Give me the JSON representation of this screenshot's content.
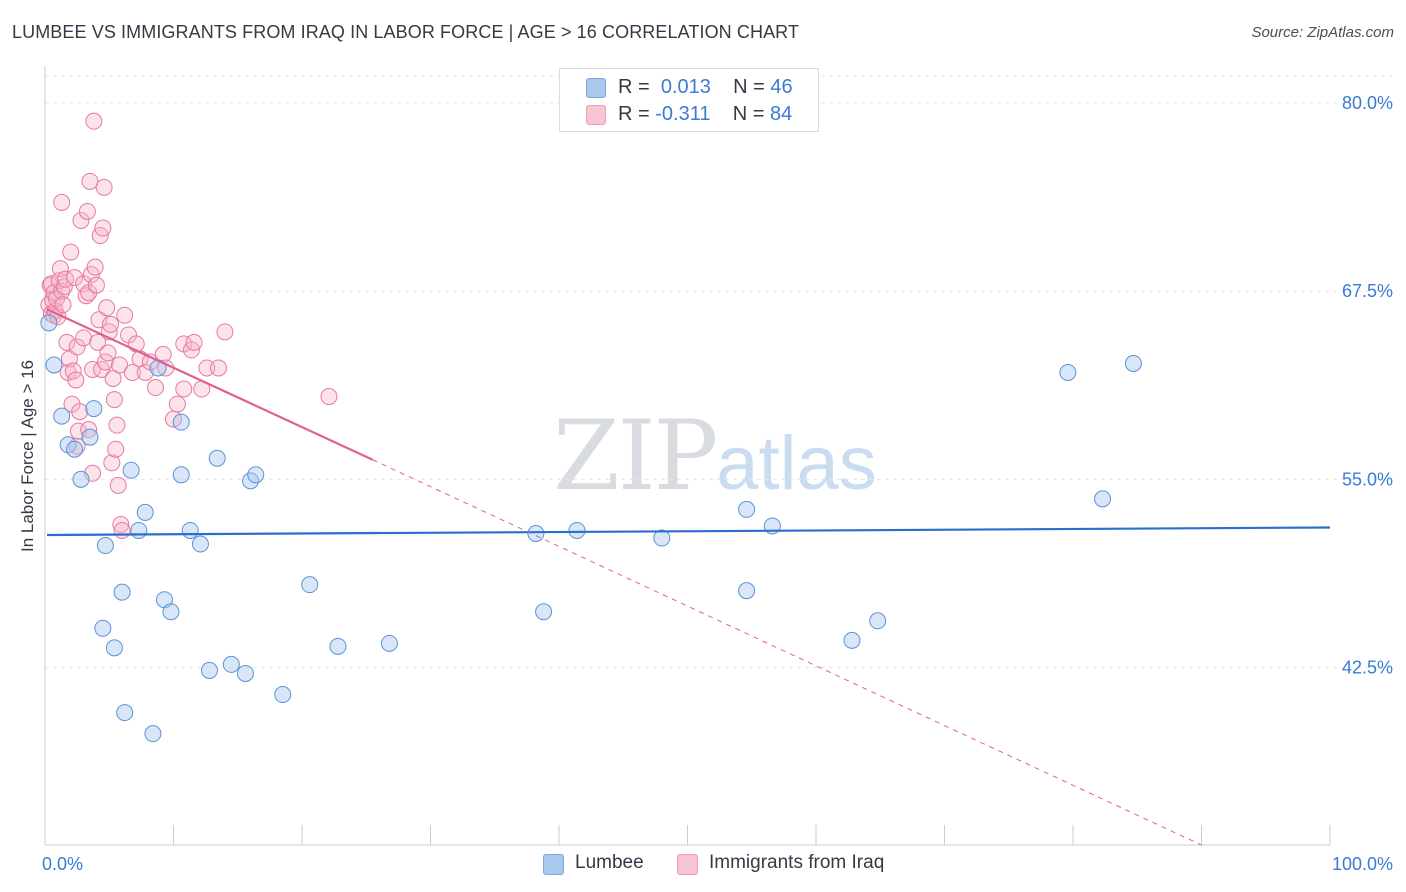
{
  "header": {
    "title": "LUMBEE VS IMMIGRANTS FROM IRAQ IN LABOR FORCE | AGE > 16 CORRELATION CHART",
    "source": "Source: ZipAtlas.com"
  },
  "watermark": {
    "zip": "ZIP",
    "atlas": "atlas"
  },
  "legend": {
    "rows": [
      {
        "r_label": "R =",
        "r_value": "0.013",
        "n_label": "N =",
        "n_value": "46",
        "color": "#a8c8ee"
      },
      {
        "r_label": "R =",
        "r_value": "-0.311",
        "n_label": "N =",
        "n_value": "84",
        "color": "#f7b6c8"
      }
    ]
  },
  "bottom_legend": {
    "items": [
      {
        "label": "Lumbee",
        "color": "#a8c8ee"
      },
      {
        "label": "Immigrants from Iraq",
        "color": "#f7b6c8"
      }
    ]
  },
  "colors": {
    "lumbee_fill": "rgba(168,200,238,0.45)",
    "lumbee_stroke": "#5b93d8",
    "lumbee_line": "#2a6fce",
    "iraq_fill": "rgba(247,182,200,0.40)",
    "iraq_stroke": "#e77aa0",
    "iraq_line": "#e0608e",
    "grid": "#e4e6ea",
    "tick_label": "#3a7bd5"
  },
  "chart_data": {
    "type": "scatter",
    "title": "LUMBEE VS IMMIGRANTS FROM IRAQ IN LABOR FORCE | AGE > 16 CORRELATION CHART",
    "xlabel": "",
    "ylabel": "In Labor Force | Age > 16",
    "xlim": [
      0,
      100
    ],
    "ylim": [
      30.7,
      82.2
    ],
    "x_tick_labels": [
      "0.0%",
      "100.0%"
    ],
    "y_ticks": [
      42.5,
      55.0,
      67.5,
      80.0
    ],
    "y_tick_labels": [
      "42.5%",
      "55.0%",
      "67.5%",
      "80.0%"
    ],
    "grid": true,
    "legend_position": "top-center",
    "series": [
      {
        "name": "Lumbee",
        "r": 0.013,
        "n": 46,
        "trend": {
          "x": [
            0,
            100
          ],
          "y": [
            51.3,
            51.8
          ],
          "style": "solid"
        },
        "points": [
          [
            0.3,
            65.4
          ],
          [
            0.7,
            62.6
          ],
          [
            1.3,
            59.2
          ],
          [
            1.8,
            57.3
          ],
          [
            2.3,
            57.0
          ],
          [
            2.8,
            55.0
          ],
          [
            3.5,
            57.8
          ],
          [
            3.8,
            59.7
          ],
          [
            4.5,
            45.1
          ],
          [
            4.7,
            50.6
          ],
          [
            5.4,
            43.8
          ],
          [
            6.0,
            47.5
          ],
          [
            6.2,
            39.5
          ],
          [
            6.7,
            55.6
          ],
          [
            7.3,
            51.6
          ],
          [
            7.8,
            52.8
          ],
          [
            8.4,
            38.1
          ],
          [
            8.8,
            62.4
          ],
          [
            9.3,
            47.0
          ],
          [
            9.8,
            46.2
          ],
          [
            10.6,
            58.8
          ],
          [
            10.6,
            55.3
          ],
          [
            11.3,
            51.6
          ],
          [
            12.1,
            50.7
          ],
          [
            12.8,
            42.3
          ],
          [
            13.4,
            56.4
          ],
          [
            14.5,
            42.7
          ],
          [
            15.6,
            42.1
          ],
          [
            16.0,
            54.9
          ],
          [
            16.4,
            55.3
          ],
          [
            18.5,
            40.7
          ],
          [
            20.6,
            48.0
          ],
          [
            22.8,
            43.9
          ],
          [
            26.8,
            44.1
          ],
          [
            38.2,
            51.4
          ],
          [
            38.8,
            46.2
          ],
          [
            41.4,
            51.6
          ],
          [
            48.0,
            51.1
          ],
          [
            54.6,
            53.0
          ],
          [
            54.6,
            47.6
          ],
          [
            56.6,
            51.9
          ],
          [
            62.8,
            44.3
          ],
          [
            64.8,
            45.6
          ],
          [
            79.6,
            62.1
          ],
          [
            82.3,
            53.7
          ],
          [
            84.7,
            62.7
          ]
        ]
      },
      {
        "name": "Immigrants from Iraq",
        "r": -0.311,
        "n": 84,
        "trend_solid": {
          "x": [
            0,
            25.5
          ],
          "y": [
            66.3,
            56.3
          ]
        },
        "trend_dashed": {
          "x": [
            25.5,
            90
          ],
          "y": [
            56.3,
            30.7
          ]
        },
        "points": [
          [
            0.3,
            66.6
          ],
          [
            0.4,
            67.9
          ],
          [
            0.5,
            66.0
          ],
          [
            0.5,
            68.0
          ],
          [
            0.6,
            66.9
          ],
          [
            0.7,
            65.9
          ],
          [
            0.7,
            67.4
          ],
          [
            0.8,
            66.2
          ],
          [
            0.9,
            67.0
          ],
          [
            1.0,
            65.8
          ],
          [
            1.1,
            68.2
          ],
          [
            1.2,
            69.0
          ],
          [
            1.3,
            67.5
          ],
          [
            1.3,
            73.4
          ],
          [
            1.4,
            66.6
          ],
          [
            1.5,
            67.8
          ],
          [
            1.6,
            68.3
          ],
          [
            1.7,
            64.1
          ],
          [
            1.8,
            62.1
          ],
          [
            1.9,
            63.0
          ],
          [
            2.0,
            70.1
          ],
          [
            2.1,
            60.0
          ],
          [
            2.2,
            62.2
          ],
          [
            2.3,
            68.4
          ],
          [
            2.4,
            61.6
          ],
          [
            2.5,
            63.8
          ],
          [
            2.5,
            57.2
          ],
          [
            2.6,
            58.2
          ],
          [
            2.7,
            59.5
          ],
          [
            2.8,
            72.2
          ],
          [
            3.0,
            64.4
          ],
          [
            3.0,
            68.0
          ],
          [
            3.2,
            67.2
          ],
          [
            3.3,
            72.8
          ],
          [
            3.4,
            67.4
          ],
          [
            3.4,
            58.3
          ],
          [
            3.5,
            74.8
          ],
          [
            3.6,
            68.6
          ],
          [
            3.7,
            62.3
          ],
          [
            3.7,
            55.4
          ],
          [
            3.8,
            78.8
          ],
          [
            3.9,
            69.1
          ],
          [
            4.0,
            67.9
          ],
          [
            4.1,
            64.1
          ],
          [
            4.2,
            65.6
          ],
          [
            4.3,
            71.2
          ],
          [
            4.4,
            62.3
          ],
          [
            4.5,
            71.7
          ],
          [
            4.6,
            74.4
          ],
          [
            4.7,
            62.8
          ],
          [
            4.8,
            66.4
          ],
          [
            4.9,
            63.4
          ],
          [
            5.0,
            64.8
          ],
          [
            5.1,
            65.3
          ],
          [
            5.2,
            56.1
          ],
          [
            5.3,
            61.7
          ],
          [
            5.4,
            60.3
          ],
          [
            5.5,
            57.0
          ],
          [
            5.6,
            58.6
          ],
          [
            5.7,
            54.6
          ],
          [
            5.8,
            62.6
          ],
          [
            5.9,
            52.0
          ],
          [
            6.0,
            51.6
          ],
          [
            6.2,
            65.9
          ],
          [
            6.5,
            64.6
          ],
          [
            6.8,
            62.1
          ],
          [
            7.1,
            64.0
          ],
          [
            7.4,
            63.0
          ],
          [
            7.8,
            62.1
          ],
          [
            8.2,
            62.8
          ],
          [
            8.6,
            61.1
          ],
          [
            9.2,
            63.3
          ],
          [
            9.4,
            62.4
          ],
          [
            10.0,
            59.0
          ],
          [
            10.3,
            60.0
          ],
          [
            10.8,
            64.0
          ],
          [
            11.4,
            63.6
          ],
          [
            11.6,
            64.1
          ],
          [
            12.2,
            61.0
          ],
          [
            12.6,
            62.4
          ],
          [
            13.5,
            62.4
          ],
          [
            14.0,
            64.8
          ],
          [
            22.1,
            60.5
          ],
          [
            10.8,
            61.0
          ]
        ]
      }
    ]
  }
}
